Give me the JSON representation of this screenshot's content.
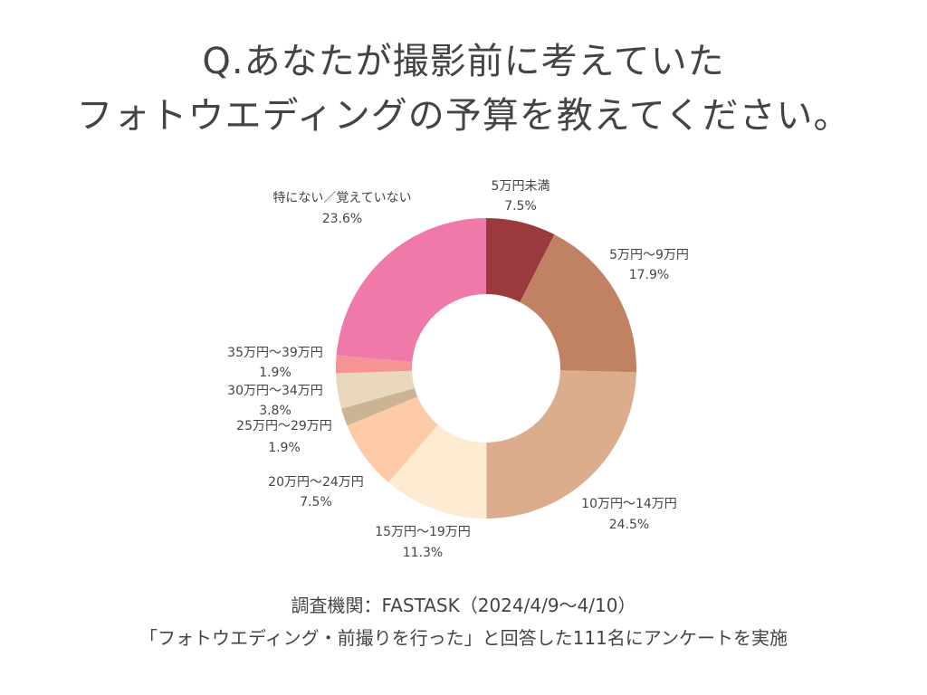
{
  "title": {
    "line1": "Q.あなたが撮影前に考えていた",
    "line2": "フォトウエディングの予算を教えてください。"
  },
  "footer": {
    "line1": "調査機関：FASTASK（2024/4/9〜4/10）",
    "line2": "「フォトウエディング・前撮りを行った」と回答した111名にアンケートを実施"
  },
  "chart_data": {
    "type": "pie",
    "donut": true,
    "slices": [
      {
        "label": "5万円未満",
        "value": 7.5,
        "display": "7.5%",
        "color": "#9a3a3c"
      },
      {
        "label": "5万円～9万円",
        "value": 17.9,
        "display": "17.9%",
        "color": "#c08262"
      },
      {
        "label": "10万円～14万円",
        "value": 24.5,
        "display": "24.5%",
        "color": "#dbad8c"
      },
      {
        "label": "15万円～19万円",
        "value": 11.3,
        "display": "11.3%",
        "color": "#fdebd2"
      },
      {
        "label": "20万円～24万円",
        "value": 7.5,
        "display": "7.5%",
        "color": "#fdcba8"
      },
      {
        "label": "25万円～29万円",
        "value": 1.9,
        "display": "1.9%",
        "color": "#cbb494"
      },
      {
        "label": "30万円～34万円",
        "value": 3.8,
        "display": "3.8%",
        "color": "#ead8bd"
      },
      {
        "label": "35万円～39万円",
        "value": 1.9,
        "display": "1.9%",
        "color": "#f69495"
      },
      {
        "label": "特にない／覚えていない",
        "value": 23.6,
        "display": "23.6%",
        "color": "#ef7aa9"
      }
    ]
  }
}
